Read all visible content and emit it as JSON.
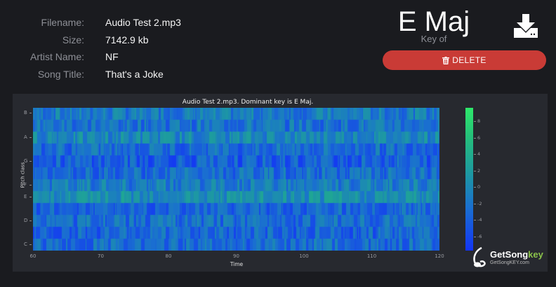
{
  "file_info": {
    "rows": [
      {
        "label": "Filename:",
        "value": "Audio Test 2.mp3"
      },
      {
        "label": "Size:",
        "value": "7142.9 kb"
      },
      {
        "label": "Artist Name:",
        "value": "NF"
      },
      {
        "label": "Song Title:",
        "value": "That's a Joke"
      }
    ]
  },
  "key": {
    "name": "E Maj",
    "caption": "Key of"
  },
  "actions": {
    "download_icon": "download-icon",
    "delete_label": "DELETE",
    "delete_icon": "trash-icon",
    "delete_color": "#c93b36"
  },
  "logo": {
    "brand_main": "GetSong",
    "brand_accent": "key",
    "url_text": "GetSongKEY.com",
    "accent_color": "#8bc34a"
  },
  "chart_data": {
    "type": "heatmap",
    "title": "Audio Test 2.mp3. Dominant key is E Maj.",
    "xlabel": "Time",
    "ylabel": "Pitch class",
    "x_ticks": [
      "60",
      "70",
      "80",
      "90",
      "100",
      "110",
      "120"
    ],
    "xlim": [
      60,
      120
    ],
    "y_ticks": [
      "B",
      "A",
      "G",
      "F",
      "E",
      "D",
      "C"
    ],
    "rows": [
      "C",
      "C#",
      "D",
      "D#",
      "E",
      "F",
      "F#",
      "G",
      "G#",
      "A",
      "A#",
      "B"
    ],
    "colorbar": {
      "ticks": [
        "8",
        "6",
        "4",
        "2",
        "0",
        "-2",
        "-4",
        "-6"
      ],
      "range": [
        -8,
        9
      ],
      "colors": [
        "#1335f5",
        "#1a6fd0",
        "#1d9aa0",
        "#25c07a",
        "#2ee86a"
      ]
    },
    "row_intensity_hint": {
      "C": 0.35,
      "C#": 0.3,
      "D": 0.35,
      "D#": 0.3,
      "E": 0.6,
      "F": 0.45,
      "F#": 0.35,
      "G": 0.25,
      "G#": 0.35,
      "A": 0.55,
      "A#": 0.4,
      "B": 0.45
    },
    "grid": false
  }
}
